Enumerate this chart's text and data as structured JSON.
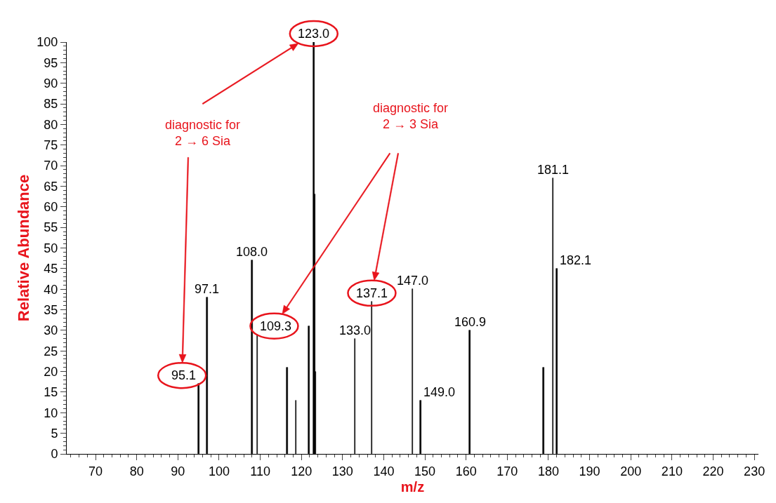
{
  "chart_data": {
    "type": "bar",
    "xlabel": "m/z",
    "ylabel": "Relative Abundance",
    "x": [
      95.1,
      97.1,
      108.0,
      109.3,
      116.6,
      118.7,
      121.8,
      123.0,
      123.2,
      123.4,
      133.0,
      137.1,
      147.0,
      149.0,
      160.9,
      178.8,
      181.1,
      182.1
    ],
    "values": [
      17,
      38,
      47,
      29,
      21,
      13,
      31,
      100,
      63,
      20,
      28,
      37,
      40,
      13,
      30,
      21,
      67,
      45
    ],
    "color": "#000000",
    "xlim": [
      63,
      231
    ],
    "xticks": [
      70,
      80,
      90,
      100,
      110,
      120,
      130,
      140,
      150,
      160,
      170,
      180,
      190,
      200,
      210,
      220,
      230
    ],
    "ylim": [
      0,
      100
    ],
    "yticks": [
      0,
      5,
      10,
      15,
      20,
      25,
      30,
      35,
      40,
      45,
      50,
      55,
      60,
      65,
      70,
      75,
      80,
      85,
      90,
      95,
      100
    ],
    "annotations": [
      {
        "text": "95.1",
        "x": 95.1,
        "y": 17
      },
      {
        "text": "97.1",
        "x": 97.1,
        "y": 38
      },
      {
        "text": "108.0",
        "x": 108.0,
        "y": 47
      },
      {
        "text": "109.3",
        "x": 109.3,
        "y": 29
      },
      {
        "text": "123.0",
        "x": 123.0,
        "y": 100
      },
      {
        "text": "133.0",
        "x": 133.0,
        "y": 28
      },
      {
        "text": "137.1",
        "x": 137.1,
        "y": 37
      },
      {
        "text": "147.0",
        "x": 147.0,
        "y": 40
      },
      {
        "text": "149.0",
        "x": 149.0,
        "y": 13
      },
      {
        "text": "160.9",
        "x": 160.9,
        "y": 30
      },
      {
        "text": "181.1",
        "x": 181.1,
        "y": 67
      },
      {
        "text": "182.1",
        "x": 182.1,
        "y": 45
      },
      "diagnostic for\n2 → 6 Sia",
      "diagnostic for\n2 → 3 Sia"
    ]
  }
}
